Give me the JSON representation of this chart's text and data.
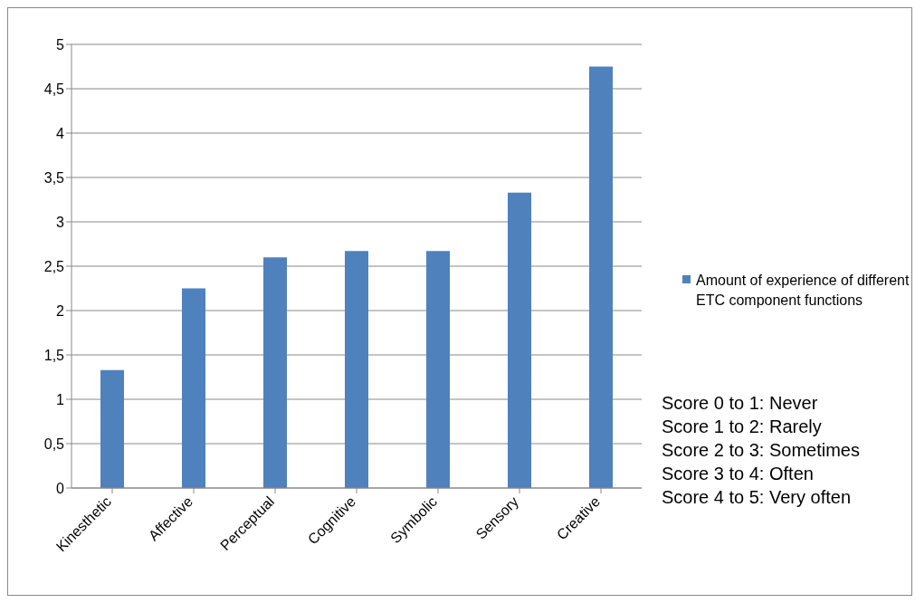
{
  "chart_data": {
    "type": "bar",
    "categories": [
      "Kinesthetic",
      "Affective",
      "Perceptual",
      "Cognitive",
      "Symbolic",
      "Sensory",
      "Creative"
    ],
    "series": [
      {
        "name": "Amount of experience of different ETC component functions",
        "color": "#4f81bd",
        "values": [
          1.33,
          2.25,
          2.6,
          2.67,
          2.67,
          3.33,
          4.75
        ]
      }
    ],
    "ylim": [
      0,
      5
    ],
    "yticks": [
      0,
      {
        "value": 0.5,
        "label": "0,5"
      },
      1,
      {
        "value": 1.5,
        "label": "1,5"
      },
      2,
      {
        "value": 2.5,
        "label": "2,5"
      },
      3,
      {
        "value": 3.5,
        "label": "3,5"
      },
      4,
      {
        "value": 4.5,
        "label": "4,5"
      },
      5
    ],
    "grid": "y",
    "legend": "right",
    "annotations": [
      "Score 0 to 1: Never",
      "Score 1 to 2: Rarely",
      "Score 2 to 3: Sometimes",
      "Score 3 to 4: Often",
      "Score 4 to 5: Very often"
    ]
  }
}
